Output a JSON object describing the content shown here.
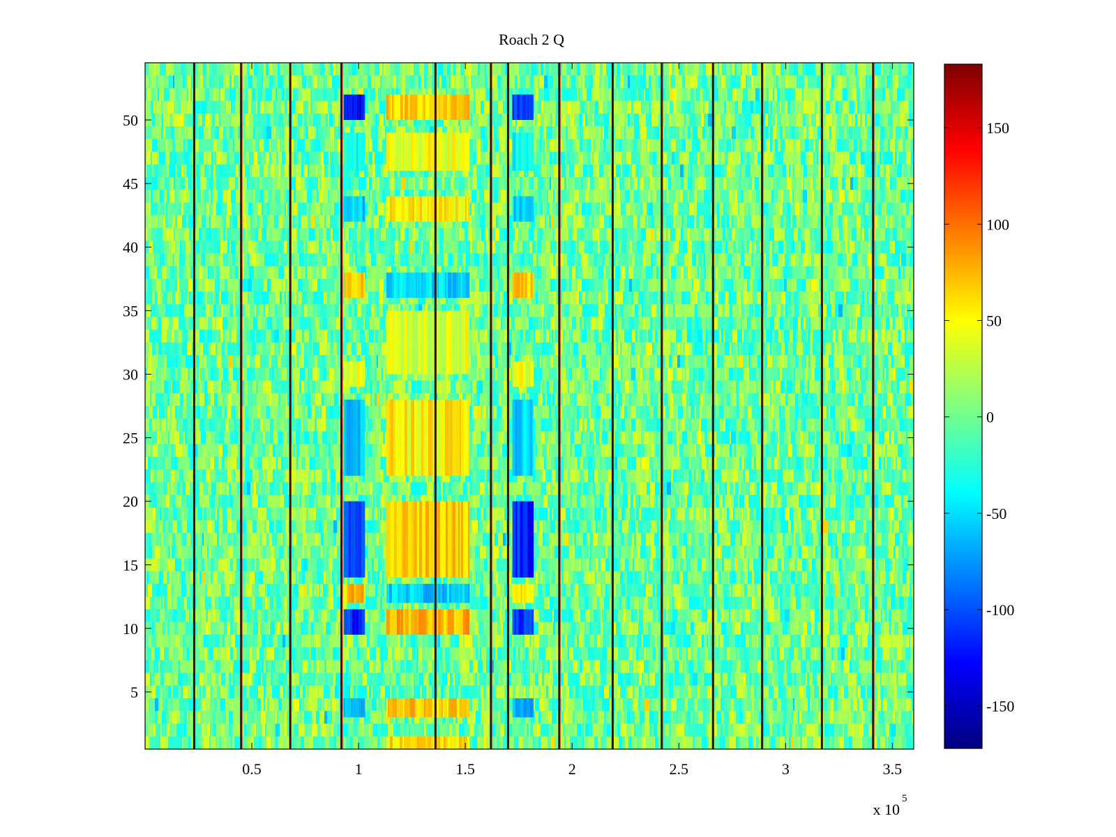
{
  "chart_data": {
    "type": "heatmap",
    "title": "Roach 2 Q",
    "xlabel": "",
    "ylabel": "",
    "x_exponent_label": "x 10",
    "x_exponent_power": "5",
    "xlim": [
      0,
      3.6
    ],
    "ylim": [
      0.5,
      54.5
    ],
    "x_ticks": [
      {
        "value": 0.5,
        "label": "0.5"
      },
      {
        "value": 1,
        "label": "1"
      },
      {
        "value": 1.5,
        "label": "1.5"
      },
      {
        "value": 2,
        "label": "2"
      },
      {
        "value": 2.5,
        "label": "2.5"
      },
      {
        "value": 3,
        "label": "3"
      },
      {
        "value": 3.5,
        "label": "3.5"
      }
    ],
    "y_ticks": [
      {
        "value": 5,
        "label": "5"
      },
      {
        "value": 10,
        "label": "10"
      },
      {
        "value": 15,
        "label": "15"
      },
      {
        "value": 20,
        "label": "20"
      },
      {
        "value": 25,
        "label": "25"
      },
      {
        "value": 30,
        "label": "30"
      },
      {
        "value": 35,
        "label": "35"
      },
      {
        "value": 40,
        "label": "40"
      },
      {
        "value": 45,
        "label": "45"
      },
      {
        "value": 50,
        "label": "50"
      }
    ],
    "colormap": "jet",
    "clim": [
      -172,
      183
    ],
    "colorbar_ticks": [
      {
        "value": 150,
        "label": "150"
      },
      {
        "value": 100,
        "label": "100"
      },
      {
        "value": 50,
        "label": "50"
      },
      {
        "value": 0,
        "label": "0"
      },
      {
        "value": -50,
        "label": "-50"
      },
      {
        "value": -100,
        "label": "-100"
      },
      {
        "value": -150,
        "label": "-150"
      }
    ],
    "background_value": 0,
    "vertical_lines": [
      0.23,
      0.45,
      0.68,
      0.92,
      1.36,
      1.62,
      1.7,
      1.94,
      2.19,
      2.42,
      2.66,
      2.89,
      3.17,
      3.41
    ],
    "blocks": [
      {
        "x": [
          0.93,
          1.03
        ],
        "y": [
          50,
          52
        ],
        "value": -120
      },
      {
        "x": [
          1.13,
          1.52
        ],
        "y": [
          50,
          52
        ],
        "value": 65
      },
      {
        "x": [
          1.72,
          1.82
        ],
        "y": [
          50,
          52
        ],
        "value": -110
      },
      {
        "x": [
          0.93,
          1.03
        ],
        "y": [
          46,
          49
        ],
        "value": -40
      },
      {
        "x": [
          1.13,
          1.52
        ],
        "y": [
          46,
          49
        ],
        "value": 45
      },
      {
        "x": [
          1.72,
          1.82
        ],
        "y": [
          46,
          49
        ],
        "value": -35
      },
      {
        "x": [
          0.93,
          1.03
        ],
        "y": [
          42,
          44
        ],
        "value": -60
      },
      {
        "x": [
          1.13,
          1.52
        ],
        "y": [
          42,
          44
        ],
        "value": 55
      },
      {
        "x": [
          1.72,
          1.82
        ],
        "y": [
          42,
          44
        ],
        "value": -55
      },
      {
        "x": [
          0.93,
          1.03
        ],
        "y": [
          36,
          38
        ],
        "value": 65
      },
      {
        "x": [
          1.13,
          1.52
        ],
        "y": [
          36,
          38
        ],
        "value": -50
      },
      {
        "x": [
          1.72,
          1.82
        ],
        "y": [
          36,
          38
        ],
        "value": 70
      },
      {
        "x": [
          1.13,
          1.52
        ],
        "y": [
          30,
          35
        ],
        "value": 40
      },
      {
        "x": [
          0.93,
          1.03
        ],
        "y": [
          29,
          31
        ],
        "value": 45
      },
      {
        "x": [
          1.72,
          1.82
        ],
        "y": [
          29,
          31
        ],
        "value": 40
      },
      {
        "x": [
          0.93,
          1.03
        ],
        "y": [
          22,
          28
        ],
        "value": -60
      },
      {
        "x": [
          1.13,
          1.52
        ],
        "y": [
          22,
          28
        ],
        "value": 55
      },
      {
        "x": [
          1.72,
          1.82
        ],
        "y": [
          22,
          28
        ],
        "value": -55
      },
      {
        "x": [
          0.93,
          1.03
        ],
        "y": [
          14,
          20
        ],
        "value": -110
      },
      {
        "x": [
          1.13,
          1.52
        ],
        "y": [
          14,
          20
        ],
        "value": 65
      },
      {
        "x": [
          1.72,
          1.82
        ],
        "y": [
          14,
          20
        ],
        "value": -115
      },
      {
        "x": [
          0.93,
          1.03
        ],
        "y": [
          12,
          13.5
        ],
        "value": 70
      },
      {
        "x": [
          1.13,
          1.52
        ],
        "y": [
          12,
          13.5
        ],
        "value": -55
      },
      {
        "x": [
          1.72,
          1.82
        ],
        "y": [
          12,
          13.5
        ],
        "value": 60
      },
      {
        "x": [
          0.93,
          1.03
        ],
        "y": [
          9.5,
          11.5
        ],
        "value": -115
      },
      {
        "x": [
          1.13,
          1.52
        ],
        "y": [
          9.5,
          11.5
        ],
        "value": 75
      },
      {
        "x": [
          1.72,
          1.82
        ],
        "y": [
          9.5,
          11.5
        ],
        "value": -110
      },
      {
        "x": [
          0.93,
          1.03
        ],
        "y": [
          3,
          4.5
        ],
        "value": -70
      },
      {
        "x": [
          1.13,
          1.52
        ],
        "y": [
          3,
          4.5
        ],
        "value": 70
      },
      {
        "x": [
          1.72,
          1.82
        ],
        "y": [
          3,
          4.5
        ],
        "value": -65
      },
      {
        "x": [
          1.13,
          1.52
        ],
        "y": [
          0.5,
          1.5
        ],
        "value": 60
      }
    ]
  }
}
